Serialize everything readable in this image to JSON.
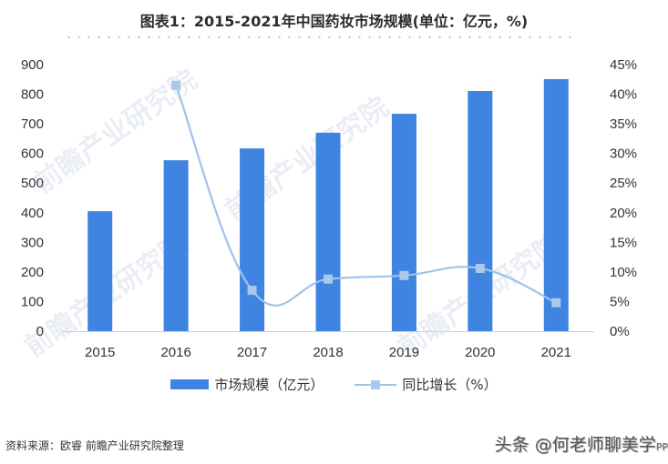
{
  "title": "图表1：2015-2021年中国药妆市场规模(单位：亿元，%)",
  "chart_data": {
    "type": "bar+line",
    "title": "图表1：2015-2021年中国药妆市场规模(单位：亿元，%)",
    "categories": [
      "2015",
      "2016",
      "2017",
      "2018",
      "2019",
      "2020",
      "2021"
    ],
    "series": [
      {
        "name": "市场规模（亿元）",
        "type": "bar",
        "axis": "left",
        "color": "#3f84e0",
        "values": [
          405,
          577,
          617,
          670,
          734,
          811,
          851
        ]
      },
      {
        "name": "同比增长（%）",
        "type": "line",
        "axis": "right",
        "color": "#9fc3ea",
        "values": [
          null,
          41.5,
          6.9,
          8.8,
          9.4,
          10.6,
          4.8
        ]
      }
    ],
    "y_left": {
      "min": 0,
      "max": 900,
      "step": 100,
      "ticks": [
        "0",
        "100",
        "200",
        "300",
        "400",
        "500",
        "600",
        "700",
        "800",
        "900"
      ]
    },
    "y_right": {
      "min": 0,
      "max": 45,
      "step": 5,
      "ticks": [
        "0%",
        "5%",
        "10%",
        "15%",
        "20%",
        "25%",
        "30%",
        "35%",
        "40%",
        "45%"
      ]
    },
    "xlabel": "",
    "ylabel": "",
    "grid": false,
    "legend_position": "bottom"
  },
  "legend": {
    "bar_label": "市场规模（亿元）",
    "line_label": "同比增长（%）"
  },
  "footer": {
    "source": "资料来源：欧睿 前瞻产业研究院整理",
    "watermark": "头条 @何老师聊美学",
    "watermark_tail": "PP"
  },
  "background_watermark": "前瞻产业研究院"
}
